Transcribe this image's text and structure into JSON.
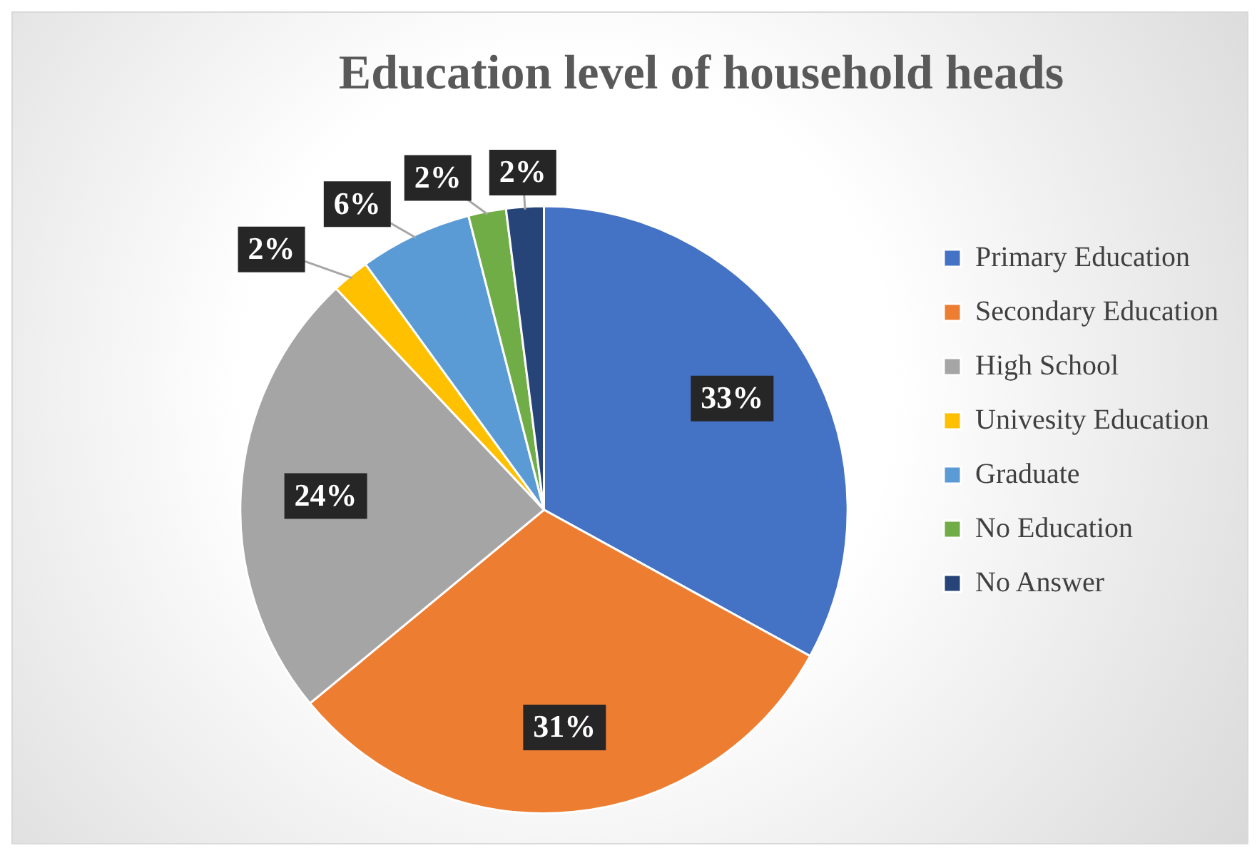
{
  "chart_data": {
    "type": "pie",
    "title": "Education level of household heads",
    "categories": [
      "Primary Education",
      "Secondary Education",
      "High School",
      "Univesity Education",
      "Graduate",
      "No Education",
      "No Answer"
    ],
    "values": [
      33,
      31,
      24,
      2,
      6,
      2,
      2
    ],
    "value_labels": [
      "33%",
      "31%",
      "24%",
      "2%",
      "6%",
      "2%",
      "2%"
    ],
    "colors": [
      "#4472c4",
      "#ed7d31",
      "#a5a5a5",
      "#ffc000",
      "#5b9bd5",
      "#70ad47",
      "#264478"
    ],
    "legend": "right"
  }
}
